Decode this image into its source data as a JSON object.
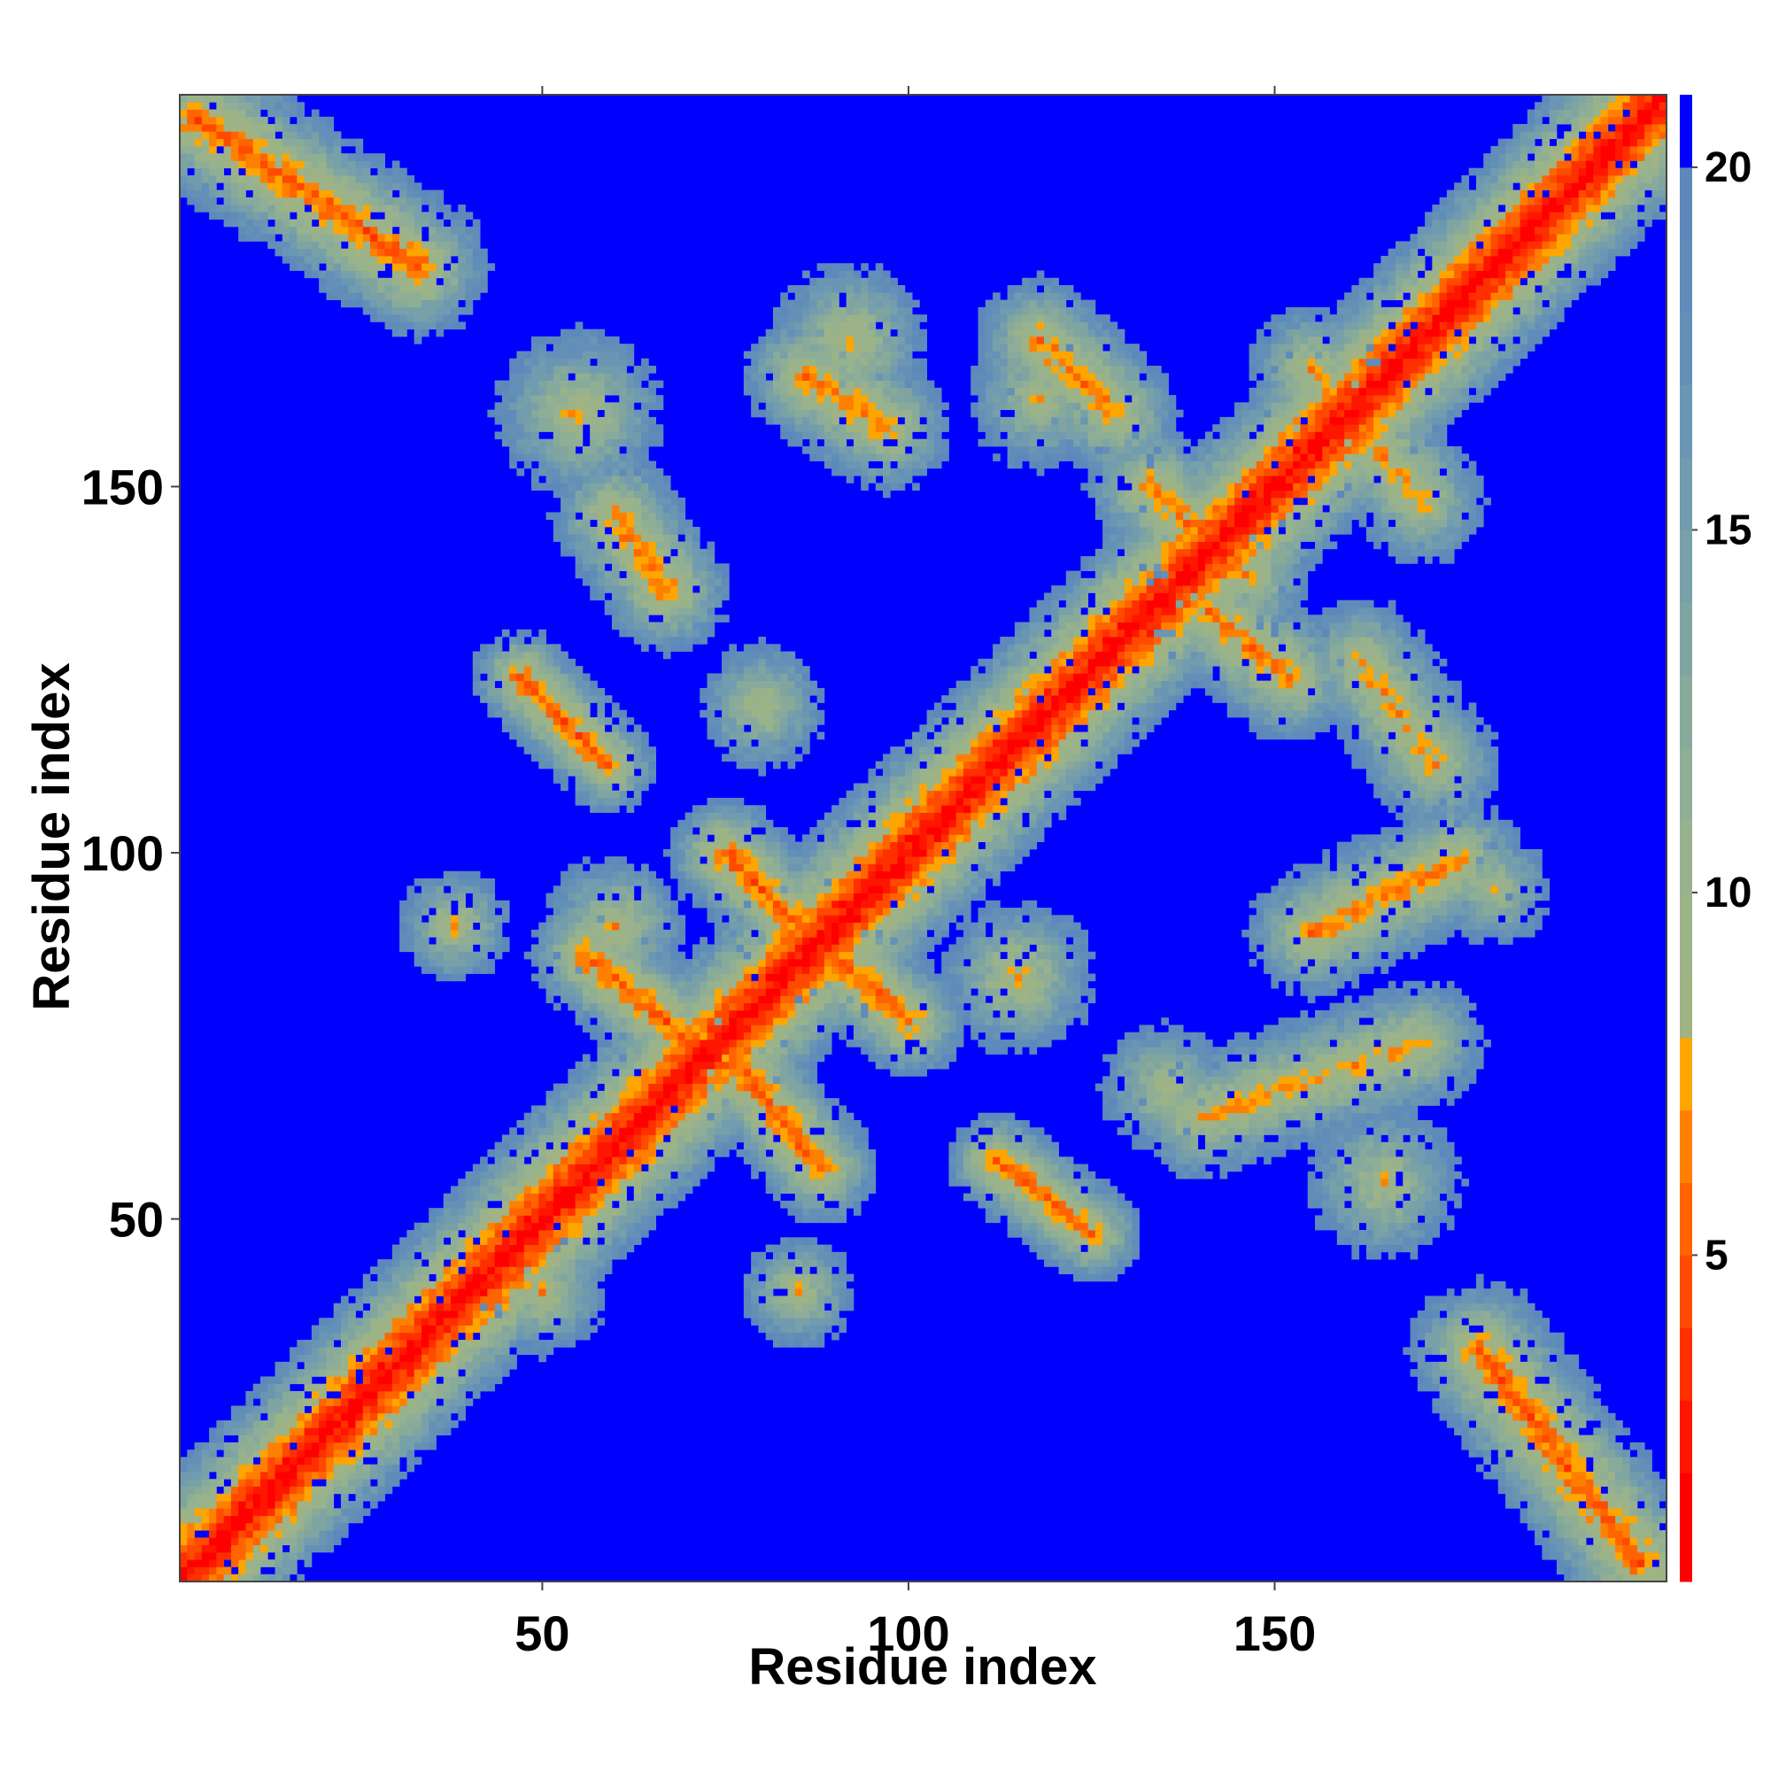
{
  "chart_data": {
    "type": "heatmap",
    "title": "",
    "xlabel": "Residue index",
    "ylabel": "Residue index",
    "xlim": [
      1,
      203
    ],
    "ylim": [
      1,
      203
    ],
    "n_residues": 203,
    "x_ticks": [
      50,
      100,
      150
    ],
    "y_ticks": [
      50,
      100,
      150
    ],
    "colorbar": {
      "ticks": [
        5,
        10,
        15,
        20
      ],
      "range": [
        0.5,
        21
      ],
      "levels": [
        {
          "max": 2,
          "color": "#ff0000"
        },
        {
          "max": 3,
          "color": "#ff1600"
        },
        {
          "max": 4,
          "color": "#ff3000"
        },
        {
          "max": 5,
          "color": "#ff4a00"
        },
        {
          "max": 6,
          "color": "#ff6400"
        },
        {
          "max": 7,
          "color": "#ff8000"
        },
        {
          "max": 8,
          "color": "#ffa500"
        },
        {
          "max": 9,
          "color": "#9fb384"
        },
        {
          "max": 10,
          "color": "#9cb388"
        },
        {
          "max": 11,
          "color": "#97b28d"
        },
        {
          "max": 12,
          "color": "#8fae95"
        },
        {
          "max": 13,
          "color": "#88aa9b"
        },
        {
          "max": 14,
          "color": "#80a5a1"
        },
        {
          "max": 15,
          "color": "#78a0a8"
        },
        {
          "max": 16,
          "color": "#719bae"
        },
        {
          "max": 17,
          "color": "#6a96b3"
        },
        {
          "max": 18,
          "color": "#6490b7"
        },
        {
          "max": 19,
          "color": "#608cb9"
        },
        {
          "max": 20,
          "color": "#5c88bb"
        },
        {
          "max": 21,
          "color": "#0000ff"
        }
      ]
    },
    "contact_features": [
      {
        "kind": "band",
        "start": [
          1,
          1
        ],
        "end": [
          203,
          203
        ],
        "width": 12,
        "min": 1,
        "seed": 0
      },
      {
        "kind": "band",
        "start": [
          3,
          200
        ],
        "end": [
          33,
          180
        ],
        "width": 10,
        "min": 5,
        "seed": 1
      },
      {
        "kind": "band",
        "start": [
          178,
          32
        ],
        "end": [
          200,
          3
        ],
        "width": 10,
        "min": 5,
        "seed": 2
      },
      {
        "kind": "band",
        "start": [
          56,
          86
        ],
        "end": [
          73,
          72
        ],
        "width": 8,
        "min": 5,
        "seed": 3
      },
      {
        "kind": "band",
        "start": [
          75,
          73
        ],
        "end": [
          88,
          57
        ],
        "width": 8,
        "min": 5,
        "seed": 4
      },
      {
        "kind": "band",
        "start": [
          75,
          100
        ],
        "end": [
          86,
          89
        ],
        "width": 8,
        "min": 5,
        "seed": 5
      },
      {
        "kind": "band",
        "start": [
          88,
          88
        ],
        "end": [
          100,
          77
        ],
        "width": 8,
        "min": 5,
        "seed": 6
      },
      {
        "kind": "band",
        "start": [
          47,
          124
        ],
        "end": [
          59,
          112
        ],
        "width": 7,
        "min": 5,
        "seed": 7
      },
      {
        "kind": "band",
        "start": [
          112,
          58
        ],
        "end": [
          125,
          48
        ],
        "width": 7,
        "min": 5,
        "seed": 8
      },
      {
        "kind": "band",
        "start": [
          60,
          146
        ],
        "end": [
          67,
          136
        ],
        "width": 9,
        "min": 6,
        "seed": 9
      },
      {
        "kind": "band",
        "start": [
          86,
          165
        ],
        "end": [
          97,
          158
        ],
        "width": 9,
        "min": 6,
        "seed": 10
      },
      {
        "kind": "band",
        "start": [
          118,
          170
        ],
        "end": [
          128,
          160
        ],
        "width": 9,
        "min": 6,
        "seed": 11
      },
      {
        "kind": "band",
        "start": [
          133,
          150
        ],
        "end": [
          146,
          138
        ],
        "width": 9,
        "min": 6,
        "seed": 12
      },
      {
        "kind": "band",
        "start": [
          141,
          133
        ],
        "end": [
          152,
          124
        ],
        "width": 9,
        "min": 6,
        "seed": 13
      },
      {
        "kind": "band",
        "start": [
          162,
          126
        ],
        "end": [
          172,
          112
        ],
        "width": 9,
        "min": 7,
        "seed": 14
      },
      {
        "kind": "band",
        "start": [
          155,
          89
        ],
        "end": [
          175,
          99
        ],
        "width": 9,
        "min": 6,
        "seed": 15
      },
      {
        "kind": "band",
        "start": [
          140,
          64
        ],
        "end": [
          170,
          74
        ],
        "width": 9,
        "min": 7,
        "seed": 16
      },
      {
        "kind": "band",
        "start": [
          155,
          166
        ],
        "end": [
          170,
          148
        ],
        "width": 9,
        "min": 7,
        "seed": 17
      },
      {
        "kind": "blob",
        "center": [
          55,
          160
        ],
        "radius": 12,
        "min": 7,
        "seed": 18
      },
      {
        "kind": "blob",
        "center": [
          92,
          170
        ],
        "radius": 11,
        "min": 7,
        "seed": 19
      },
      {
        "kind": "blob",
        "center": [
          118,
          162
        ],
        "radius": 10,
        "min": 8,
        "seed": 20
      },
      {
        "kind": "blob",
        "center": [
          38,
          90
        ],
        "radius": 8,
        "min": 7,
        "seed": 21
      },
      {
        "kind": "blob",
        "center": [
          60,
          90
        ],
        "radius": 10,
        "min": 7,
        "seed": 22
      },
      {
        "kind": "blob",
        "center": [
          115,
          83
        ],
        "radius": 11,
        "min": 7,
        "seed": 23
      },
      {
        "kind": "blob",
        "center": [
          135,
          68
        ],
        "radius": 9,
        "min": 8,
        "seed": 24
      },
      {
        "kind": "blob",
        "center": [
          85,
          40
        ],
        "radius": 8,
        "min": 7,
        "seed": 25
      },
      {
        "kind": "blob",
        "center": [
          165,
          55
        ],
        "radius": 11,
        "min": 8,
        "seed": 26
      },
      {
        "kind": "blob",
        "center": [
          180,
          95
        ],
        "radius": 8,
        "min": 8,
        "seed": 27
      },
      {
        "kind": "blob",
        "center": [
          50,
          40
        ],
        "radius": 9,
        "min": 7,
        "seed": 28
      },
      {
        "kind": "blob",
        "center": [
          80,
          120
        ],
        "radius": 9,
        "min": 8,
        "seed": 29
      }
    ]
  }
}
